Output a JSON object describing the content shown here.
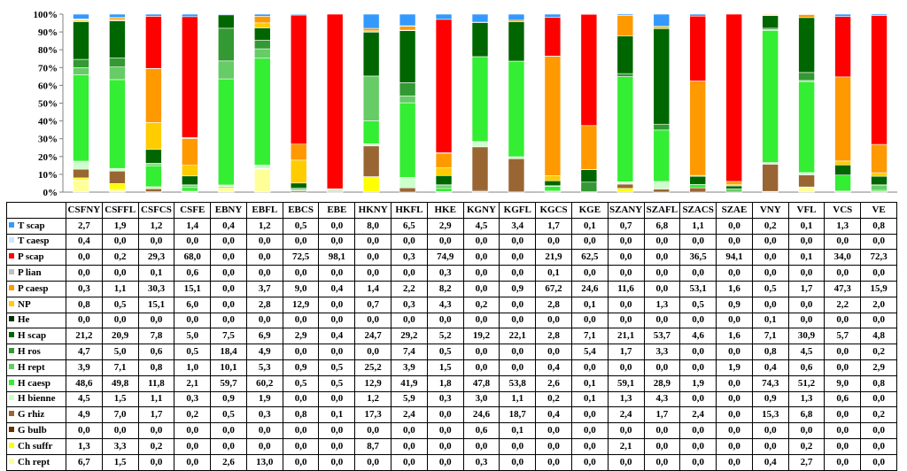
{
  "chart_data": {
    "type": "bar",
    "stacked": true,
    "percent_stacked": true,
    "ylim": [
      0,
      100
    ],
    "yticks": [
      "0%",
      "10%",
      "20%",
      "30%",
      "40%",
      "50%",
      "60%",
      "70%",
      "80%",
      "90%",
      "100%"
    ],
    "grid": false,
    "legend": "data-table-left",
    "categories": [
      "CSFNY",
      "CSFFL",
      "CSFCS",
      "CSFE",
      "EBNY",
      "EBFL",
      "EBCS",
      "EBE",
      "HKNY",
      "HKFL",
      "HKE",
      "KGNY",
      "KGFL",
      "KGCS",
      "KGE",
      "SZANY",
      "SZAFL",
      "SZACS",
      "SZAE",
      "VNY",
      "VFL",
      "VCS",
      "VE"
    ],
    "series": [
      {
        "name": "T scap",
        "color": "#3399ff",
        "values": [
          "2,7",
          "1,9",
          "1,2",
          "1,4",
          "0,4",
          "1,2",
          "0,5",
          "0,0",
          "8,0",
          "6,5",
          "2,9",
          "4,5",
          "3,4",
          "1,7",
          "0,1",
          "0,7",
          "6,8",
          "1,1",
          "0,0",
          "0,2",
          "0,1",
          "1,3",
          "0,8"
        ]
      },
      {
        "name": "T caesp",
        "color": "#cce6ff",
        "values": [
          "0,4",
          "0,0",
          "0,0",
          "0,0",
          "0,0",
          "0,0",
          "0,0",
          "0,0",
          "0,0",
          "0,0",
          "0,0",
          "0,0",
          "0,0",
          "0,0",
          "0,0",
          "0,0",
          "0,0",
          "0,0",
          "0,0",
          "0,0",
          "0,0",
          "0,0",
          "0,0"
        ]
      },
      {
        "name": "P scap",
        "color": "#ff0000",
        "values": [
          "0,0",
          "0,2",
          "29,3",
          "68,0",
          "0,0",
          "0,0",
          "72,5",
          "98,1",
          "0,0",
          "0,3",
          "74,9",
          "0,0",
          "0,0",
          "21,9",
          "62,5",
          "0,0",
          "0,0",
          "36,5",
          "94,1",
          "0,0",
          "0,1",
          "34,0",
          "72,3"
        ]
      },
      {
        "name": "P lian",
        "color": "#bfbfbf",
        "values": [
          "0,0",
          "0,0",
          "0,1",
          "0,6",
          "0,0",
          "0,0",
          "0,0",
          "0,0",
          "0,0",
          "0,0",
          "0,3",
          "0,0",
          "0,0",
          "0,1",
          "0,0",
          "0,0",
          "0,0",
          "0,0",
          "0,0",
          "0,0",
          "0,0",
          "0,0",
          "0,0"
        ]
      },
      {
        "name": "P caesp",
        "color": "#ff9900",
        "values": [
          "0,3",
          "1,1",
          "30,3",
          "15,1",
          "0,0",
          "3,7",
          "9,0",
          "0,4",
          "1,4",
          "2,2",
          "8,2",
          "0,0",
          "0,9",
          "67,2",
          "24,6",
          "11,6",
          "0,0",
          "53,1",
          "1,6",
          "0,5",
          "1,7",
          "47,3",
          "15,9"
        ]
      },
      {
        "name": "NP",
        "color": "#ffcc00",
        "values": [
          "0,8",
          "0,5",
          "15,1",
          "6,0",
          "0,0",
          "2,8",
          "12,9",
          "0,0",
          "0,7",
          "0,3",
          "4,3",
          "0,2",
          "0,0",
          "2,8",
          "0,1",
          "0,0",
          "1,3",
          "0,5",
          "0,9",
          "0,0",
          "0,0",
          "2,2",
          "2,0"
        ]
      },
      {
        "name": "He",
        "color": "#003300",
        "values": [
          "0,0",
          "0,0",
          "0,0",
          "0,0",
          "0,0",
          "0,0",
          "0,0",
          "0,0",
          "0,0",
          "0,0",
          "0,0",
          "0,0",
          "0,0",
          "0,0",
          "0,0",
          "0,0",
          "0,0",
          "0,0",
          "0,0",
          "0,1",
          "0,0",
          "0,0",
          "0,0"
        ]
      },
      {
        "name": "H scap",
        "color": "#006600",
        "values": [
          "21,2",
          "20,9",
          "7,8",
          "5,0",
          "7,5",
          "6,9",
          "2,9",
          "0,4",
          "24,7",
          "29,2",
          "5,2",
          "19,2",
          "22,1",
          "2,8",
          "7,1",
          "21,1",
          "53,7",
          "4,6",
          "1,6",
          "7,1",
          "30,9",
          "5,7",
          "4,8"
        ]
      },
      {
        "name": "H ros",
        "color": "#339933",
        "values": [
          "4,7",
          "5,0",
          "0,6",
          "0,5",
          "18,4",
          "4,9",
          "0,0",
          "0,0",
          "0,0",
          "7,4",
          "0,5",
          "0,0",
          "0,0",
          "0,0",
          "5,4",
          "1,7",
          "3,3",
          "0,0",
          "0,0",
          "0,8",
          "4,5",
          "0,0",
          "0,2"
        ]
      },
      {
        "name": "H rept",
        "color": "#66cc66",
        "values": [
          "3,9",
          "7,1",
          "0,8",
          "1,0",
          "10,1",
          "5,3",
          "0,9",
          "0,5",
          "25,2",
          "3,9",
          "1,5",
          "0,0",
          "0,0",
          "0,4",
          "0,0",
          "0,0",
          "0,0",
          "0,0",
          "1,9",
          "0,4",
          "0,6",
          "0,0",
          "2,9"
        ]
      },
      {
        "name": "H caesp",
        "color": "#33ee33",
        "values": [
          "48,6",
          "49,8",
          "11,8",
          "2,1",
          "59,7",
          "60,2",
          "0,5",
          "0,5",
          "12,9",
          "41,9",
          "1,8",
          "47,8",
          "53,8",
          "2,6",
          "0,1",
          "59,1",
          "28,9",
          "1,9",
          "0,0",
          "74,3",
          "51,2",
          "9,0",
          "0,8"
        ]
      },
      {
        "name": "H bienne",
        "color": "#ccffcc",
        "values": [
          "4,5",
          "1,5",
          "1,1",
          "0,3",
          "0,9",
          "1,9",
          "0,0",
          "0,0",
          "1,2",
          "5,9",
          "0,3",
          "3,0",
          "1,1",
          "0,2",
          "0,1",
          "1,3",
          "4,3",
          "0,0",
          "0,0",
          "0,9",
          "1,3",
          "0,6",
          "0,0"
        ]
      },
      {
        "name": "G rhiz",
        "color": "#996633",
        "values": [
          "4,9",
          "7,0",
          "1,7",
          "0,2",
          "0,5",
          "0,3",
          "0,8",
          "0,1",
          "17,3",
          "2,4",
          "0,0",
          "24,6",
          "18,7",
          "0,4",
          "0,0",
          "2,4",
          "1,7",
          "2,4",
          "0,0",
          "15,3",
          "6,8",
          "0,0",
          "0,2"
        ]
      },
      {
        "name": "G bulb",
        "color": "#663300",
        "values": [
          "0,0",
          "0,0",
          "0,0",
          "0,0",
          "0,0",
          "0,0",
          "0,0",
          "0,0",
          "0,0",
          "0,0",
          "0,0",
          "0,6",
          "0,1",
          "0,0",
          "0,0",
          "0,0",
          "0,0",
          "0,0",
          "0,0",
          "0,0",
          "0,0",
          "0,0",
          "0,0"
        ]
      },
      {
        "name": "Ch suffr",
        "color": "#ffff00",
        "values": [
          "1,3",
          "3,3",
          "0,2",
          "0,0",
          "0,0",
          "0,0",
          "0,0",
          "0,0",
          "8,7",
          "0,0",
          "0,0",
          "0,0",
          "0,0",
          "0,0",
          "0,0",
          "2,1",
          "0,0",
          "0,0",
          "0,0",
          "0,0",
          "0,2",
          "0,0",
          "0,0"
        ]
      },
      {
        "name": "Ch rept",
        "color": "#ffff99",
        "values": [
          "6,7",
          "1,5",
          "0,0",
          "0,0",
          "2,6",
          "13,0",
          "0,0",
          "0,0",
          "0,0",
          "0,0",
          "0,0",
          "0,3",
          "0,0",
          "0,0",
          "0,0",
          "0,0",
          "0,0",
          "0,0",
          "0,0",
          "0,4",
          "2,7",
          "0,0",
          "0,0"
        ]
      }
    ]
  }
}
